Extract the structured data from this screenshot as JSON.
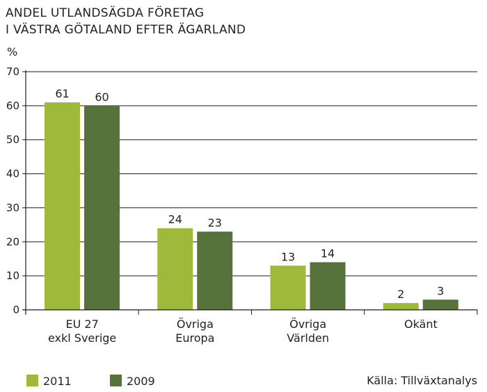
{
  "chart_data": {
    "type": "bar",
    "title_lines": [
      "ANDEL UTLANDSÄGDA FÖRETAG",
      "I VÄSTRA GÖTALAND EFTER ÄGARLAND"
    ],
    "ylabel": "%",
    "ylim": [
      0,
      70
    ],
    "yticks": [
      "0",
      "10",
      "20",
      "30",
      "40",
      "50",
      "60",
      "70"
    ],
    "categories": [
      [
        "EU 27",
        "exkl Sverige"
      ],
      [
        "Övriga",
        "Europa"
      ],
      [
        "Övriga",
        "Världen"
      ],
      [
        "Okänt"
      ]
    ],
    "series": [
      {
        "name": "2011",
        "color": "#9fba3a",
        "values": [
          61,
          24,
          13,
          2
        ],
        "labels": [
          "61",
          "24",
          "13",
          "2"
        ]
      },
      {
        "name": "2009",
        "color": "#56733b",
        "values": [
          60,
          23,
          14,
          3
        ],
        "labels": [
          "60",
          "23",
          "14",
          "3"
        ]
      }
    ],
    "grid": true,
    "legend_position": "bottom-left",
    "source": "Källa: Tillväxtanalys"
  }
}
